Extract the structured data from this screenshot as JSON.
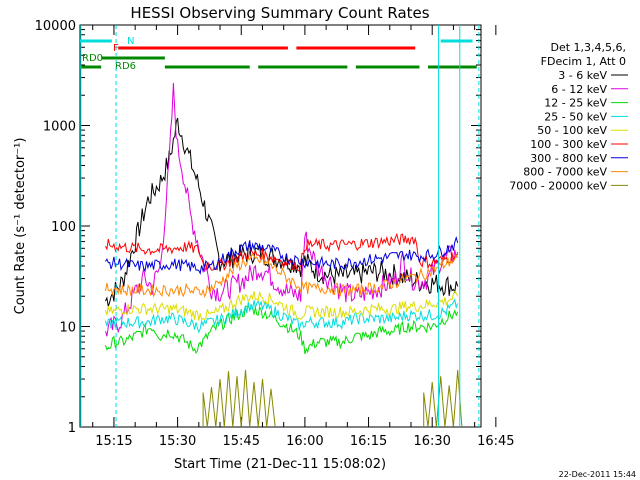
{
  "chart_data": {
    "type": "line",
    "title": "HESSI Observing Summary Count Rates",
    "xlabel": "Start Time (21-Dec-11 15:08:02)",
    "ylabel": "Count Rate (s⁻¹ detector⁻¹)",
    "y_scale": "log",
    "ylim": [
      1,
      10000
    ],
    "xlim_minutes": [
      7.0,
      101.5
    ],
    "x_ticks": [
      {
        "label": "15:15",
        "min": 15
      },
      {
        "label": "15:30",
        "min": 30
      },
      {
        "label": "15:45",
        "min": 45
      },
      {
        "label": "16:00",
        "min": 60
      },
      {
        "label": "16:15",
        "min": 75
      },
      {
        "label": "16:30",
        "min": 90
      },
      {
        "label": "16:45",
        "min": 105
      }
    ],
    "y_ticks": [
      {
        "label": "1",
        "v": 1
      },
      {
        "label": "10",
        "v": 10
      },
      {
        "label": "100",
        "v": 100
      },
      {
        "label": "1000",
        "v": 1000
      },
      {
        "label": "10000",
        "v": 10000
      }
    ],
    "legend": {
      "header": [
        "Det 1,3,4,5,6,",
        "FDecim 1, Att 0"
      ],
      "placement": "right"
    },
    "series": [
      {
        "name": "3 - 6 keV",
        "color": "#000000",
        "points": [
          [
            13,
            18
          ],
          [
            15,
            22
          ],
          [
            17,
            28
          ],
          [
            20,
            70
          ],
          [
            23,
            180
          ],
          [
            26,
            280
          ],
          [
            28,
            450
          ],
          [
            30,
            1100
          ],
          [
            32,
            600
          ],
          [
            35,
            250
          ],
          [
            38,
            90
          ],
          [
            40,
            45
          ],
          [
            44,
            50
          ],
          [
            48,
            55
          ],
          [
            52,
            50
          ],
          [
            56,
            45
          ],
          [
            59,
            40
          ],
          [
            60,
            45
          ],
          [
            63,
            35
          ],
          [
            66,
            32
          ],
          [
            69,
            32
          ],
          [
            72,
            32
          ],
          [
            75,
            35
          ],
          [
            78,
            35
          ],
          [
            81,
            33
          ],
          [
            84,
            30
          ],
          [
            87,
            28
          ],
          [
            90,
            27
          ],
          [
            93,
            26
          ],
          [
            96,
            25
          ]
        ]
      },
      {
        "name": "6 - 12 keV",
        "color": "#dd00dd",
        "points": [
          [
            13,
            9
          ],
          [
            15,
            10
          ],
          [
            17,
            12
          ],
          [
            20,
            22
          ],
          [
            22,
            30
          ],
          [
            24,
            25
          ],
          [
            26,
            40
          ],
          [
            28,
            400
          ],
          [
            29,
            2200
          ],
          [
            30,
            600
          ],
          [
            31,
            400
          ],
          [
            33,
            130
          ],
          [
            36,
            45
          ],
          [
            38,
            24
          ],
          [
            40,
            22
          ],
          [
            43,
            25
          ],
          [
            46,
            30
          ],
          [
            49,
            38
          ],
          [
            51,
            35
          ],
          [
            53,
            28
          ],
          [
            56,
            22
          ],
          [
            59,
            20
          ],
          [
            60,
            80
          ],
          [
            61,
            60
          ],
          [
            63,
            40
          ],
          [
            66,
            28
          ],
          [
            69,
            22
          ],
          [
            72,
            20
          ],
          [
            75,
            22
          ],
          [
            78,
            25
          ],
          [
            81,
            28
          ],
          [
            83,
            45
          ],
          [
            85,
            30
          ],
          [
            87,
            28
          ],
          [
            89,
            30
          ],
          [
            92,
            45
          ],
          [
            96,
            55
          ]
        ]
      },
      {
        "name": "12 - 25 keV",
        "color": "#00dd00",
        "points": [
          [
            13,
            6
          ],
          [
            15,
            7
          ],
          [
            17,
            7
          ],
          [
            20,
            8
          ],
          [
            22,
            9
          ],
          [
            24,
            10
          ],
          [
            26,
            8
          ],
          [
            28,
            9
          ],
          [
            30,
            8
          ],
          [
            32,
            7
          ],
          [
            34,
            6
          ],
          [
            36,
            7
          ],
          [
            38,
            9
          ],
          [
            41,
            11
          ],
          [
            44,
            13
          ],
          [
            47,
            15
          ],
          [
            50,
            14
          ],
          [
            53,
            12
          ],
          [
            56,
            10
          ],
          [
            59,
            8
          ],
          [
            60,
            6
          ],
          [
            63,
            7
          ],
          [
            66,
            7
          ],
          [
            69,
            7
          ],
          [
            72,
            8
          ],
          [
            75,
            8
          ],
          [
            78,
            9
          ],
          [
            81,
            9
          ],
          [
            84,
            10
          ],
          [
            87,
            10
          ],
          [
            90,
            10
          ],
          [
            93,
            12
          ],
          [
            96,
            14
          ]
        ]
      },
      {
        "name": "25 - 50 keV",
        "color": "#00dddd",
        "points": [
          [
            13,
            10
          ],
          [
            15,
            11
          ],
          [
            17,
            11
          ],
          [
            20,
            11
          ],
          [
            23,
            11
          ],
          [
            26,
            12
          ],
          [
            29,
            12
          ],
          [
            32,
            11
          ],
          [
            35,
            10
          ],
          [
            38,
            11
          ],
          [
            41,
            12
          ],
          [
            44,
            14
          ],
          [
            47,
            16
          ],
          [
            50,
            16
          ],
          [
            53,
            14
          ],
          [
            56,
            12
          ],
          [
            59,
            10
          ],
          [
            60,
            11
          ],
          [
            63,
            11
          ],
          [
            66,
            11
          ],
          [
            69,
            11
          ],
          [
            72,
            12
          ],
          [
            75,
            12
          ],
          [
            78,
            12
          ],
          [
            81,
            12
          ],
          [
            84,
            13
          ],
          [
            87,
            13
          ],
          [
            90,
            13
          ],
          [
            93,
            14
          ],
          [
            96,
            17
          ]
        ]
      },
      {
        "name": "50 - 100 keV",
        "color": "#dddd00",
        "points": [
          [
            13,
            14
          ],
          [
            15,
            14
          ],
          [
            17,
            15
          ],
          [
            20,
            15
          ],
          [
            23,
            15
          ],
          [
            26,
            15
          ],
          [
            29,
            15
          ],
          [
            32,
            14
          ],
          [
            35,
            13
          ],
          [
            38,
            13
          ],
          [
            41,
            15
          ],
          [
            44,
            18
          ],
          [
            47,
            20
          ],
          [
            50,
            20
          ],
          [
            53,
            18
          ],
          [
            56,
            15
          ],
          [
            59,
            13
          ],
          [
            60,
            14
          ],
          [
            63,
            14
          ],
          [
            66,
            14
          ],
          [
            69,
            14
          ],
          [
            72,
            14
          ],
          [
            75,
            15
          ],
          [
            78,
            15
          ],
          [
            81,
            15
          ],
          [
            84,
            16
          ],
          [
            87,
            16
          ],
          [
            90,
            17
          ],
          [
            93,
            18
          ],
          [
            96,
            20
          ]
        ]
      },
      {
        "name": "100 - 300 keV",
        "color": "#ff0000",
        "points": [
          [
            13,
            65
          ],
          [
            15,
            64
          ],
          [
            17,
            62
          ],
          [
            20,
            60
          ],
          [
            23,
            58
          ],
          [
            26,
            58
          ],
          [
            29,
            60
          ],
          [
            32,
            62
          ],
          [
            35,
            58
          ],
          [
            36,
            42
          ],
          [
            38,
            40
          ],
          [
            41,
            42
          ],
          [
            44,
            48
          ],
          [
            47,
            53
          ],
          [
            50,
            52
          ],
          [
            53,
            48
          ],
          [
            56,
            43
          ],
          [
            59,
            40
          ],
          [
            60,
            65
          ],
          [
            63,
            65
          ],
          [
            66,
            64
          ],
          [
            69,
            65
          ],
          [
            72,
            66
          ],
          [
            75,
            68
          ],
          [
            78,
            70
          ],
          [
            81,
            72
          ],
          [
            84,
            74
          ],
          [
            86,
            75
          ],
          [
            87,
            45
          ],
          [
            90,
            43
          ],
          [
            93,
            47
          ],
          [
            96,
            52
          ]
        ]
      },
      {
        "name": "300 - 800 keV",
        "color": "#0000dd",
        "points": [
          [
            13,
            42
          ],
          [
            15,
            43
          ],
          [
            17,
            42
          ],
          [
            20,
            40
          ],
          [
            23,
            40
          ],
          [
            26,
            41
          ],
          [
            29,
            42
          ],
          [
            32,
            40
          ],
          [
            35,
            38
          ],
          [
            38,
            40
          ],
          [
            41,
            48
          ],
          [
            44,
            58
          ],
          [
            47,
            64
          ],
          [
            50,
            62
          ],
          [
            53,
            55
          ],
          [
            56,
            48
          ],
          [
            59,
            45
          ],
          [
            60,
            44
          ],
          [
            63,
            43
          ],
          [
            66,
            42
          ],
          [
            69,
            42
          ],
          [
            72,
            44
          ],
          [
            75,
            46
          ],
          [
            78,
            48
          ],
          [
            81,
            50
          ],
          [
            84,
            52
          ],
          [
            87,
            50
          ],
          [
            90,
            52
          ],
          [
            93,
            58
          ],
          [
            96,
            68
          ]
        ]
      },
      {
        "name": "800 - 7000 keV",
        "color": "#ff8800",
        "points": [
          [
            13,
            24
          ],
          [
            15,
            24
          ],
          [
            17,
            23
          ],
          [
            20,
            23
          ],
          [
            23,
            23
          ],
          [
            26,
            23
          ],
          [
            29,
            23
          ],
          [
            32,
            23
          ],
          [
            35,
            22
          ],
          [
            38,
            24
          ],
          [
            41,
            30
          ],
          [
            44,
            40
          ],
          [
            47,
            46
          ],
          [
            50,
            45
          ],
          [
            53,
            38
          ],
          [
            56,
            30
          ],
          [
            59,
            25
          ],
          [
            60,
            24
          ],
          [
            63,
            24
          ],
          [
            66,
            24
          ],
          [
            69,
            23
          ],
          [
            72,
            23
          ],
          [
            75,
            24
          ],
          [
            78,
            25
          ],
          [
            81,
            27
          ],
          [
            84,
            30
          ],
          [
            87,
            32
          ],
          [
            90,
            36
          ],
          [
            93,
            42
          ],
          [
            96,
            48
          ]
        ]
      },
      {
        "name": "7000 - 20000 keV",
        "color": "#888800",
        "segments": [
          [
            [
              36,
              1
            ],
            [
              36,
              2.2
            ],
            [
              37,
              1
            ],
            [
              38,
              2.5
            ],
            [
              39,
              1
            ],
            [
              40,
              3
            ],
            [
              41,
              1
            ],
            [
              42,
              3.6
            ],
            [
              43,
              1
            ],
            [
              44,
              3.2
            ],
            [
              45,
              1
            ],
            [
              46,
              3.7
            ],
            [
              47,
              1
            ],
            [
              48,
              2.8
            ],
            [
              49,
              1
            ],
            [
              50,
              3
            ],
            [
              51,
              1
            ],
            [
              52,
              2.4
            ],
            [
              53,
              1
            ]
          ],
          [
            [
              88,
              1
            ],
            [
              88,
              2.2
            ],
            [
              89,
              1
            ],
            [
              90,
              2.8
            ],
            [
              91,
              1
            ],
            [
              92,
              3.2
            ],
            [
              93,
              1
            ],
            [
              94,
              2.6
            ],
            [
              95,
              1
            ],
            [
              96,
              3.7
            ],
            [
              97,
              1
            ]
          ]
        ]
      }
    ],
    "state_bars": [
      {
        "label": "N",
        "color": "#00dddd",
        "segments_min": [
          [
            7.0,
            14.5
          ],
          [
            92.0,
            99.5
          ]
        ],
        "level": "top"
      },
      {
        "label": "F",
        "color": "#ff0000",
        "segments_min": [
          [
            16,
            56
          ],
          [
            58,
            86
          ]
        ],
        "level": "upper"
      },
      {
        "label": "RD0",
        "color": "#008800",
        "segments_min": [
          [
            12,
            27
          ]
        ],
        "level": "middle"
      },
      {
        "label": "RD6",
        "color": "#008800",
        "segments_min": [
          [
            7.0,
            12
          ],
          [
            27,
            47
          ],
          [
            49,
            70
          ],
          [
            72,
            87
          ],
          [
            89,
            100.5
          ]
        ],
        "level": "lower"
      }
    ],
    "markers_min": [
      {
        "min": 7.2,
        "color": "#00dddd",
        "style": "solid"
      },
      {
        "min": 15.5,
        "color": "#00dddd",
        "style": "dashed"
      },
      {
        "min": 91.5,
        "color": "#00dddd",
        "style": "solid"
      },
      {
        "min": 96.5,
        "color": "#00dddd",
        "style": "solid"
      },
      {
        "min": 101.0,
        "color": "#00dddd",
        "style": "dashed"
      }
    ],
    "footer_date": "22-Dec-2011 15:44"
  }
}
